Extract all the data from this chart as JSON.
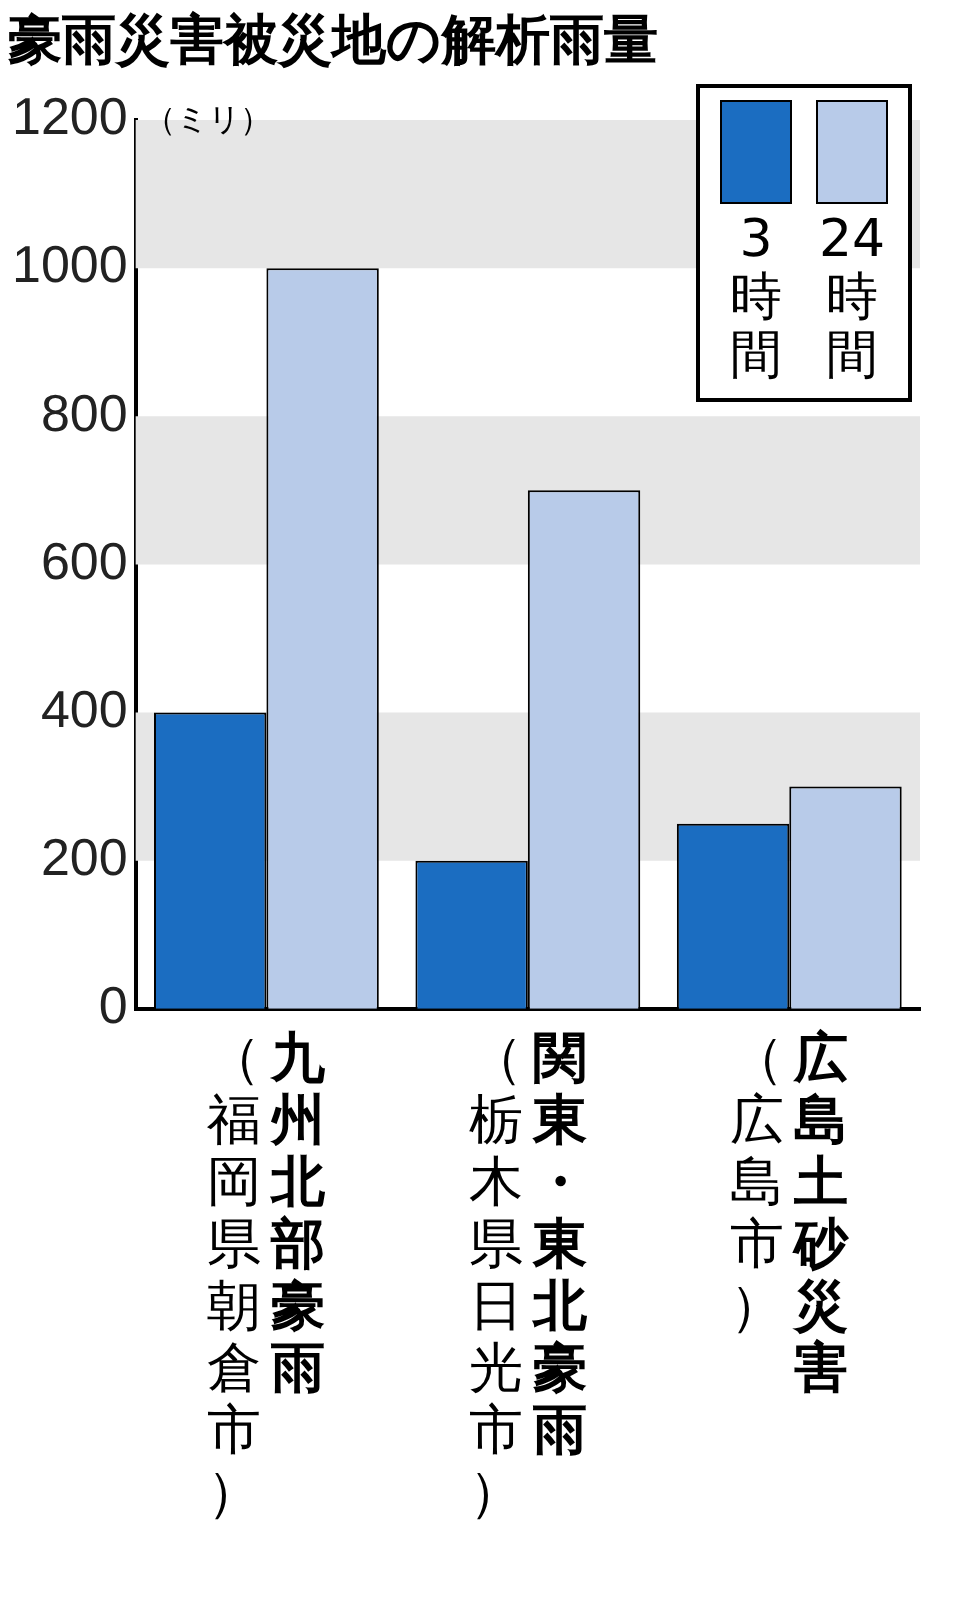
{
  "chart_data": {
    "type": "bar",
    "title": "豪雨災害被災地の解析雨量",
    "ylabel": "（ミリ）",
    "categories": [
      "九州北部豪雨（福岡県朝倉市）",
      "関東・東北豪雨（栃木県日光市）",
      "広島土砂災害（広島市）"
    ],
    "series": [
      {
        "name": "3時間",
        "color": "#1b6dc1",
        "values": [
          400,
          200,
          250
        ]
      },
      {
        "name": "24時間",
        "color": "#b8cbe9",
        "values": [
          1000,
          700,
          300
        ]
      }
    ],
    "ylim": [
      0,
      1200
    ],
    "yticks": [
      0,
      200,
      400,
      600,
      800,
      1000,
      1200
    ],
    "grid": false,
    "legend": "top right",
    "bands": [
      {
        "axis": "y",
        "from": 200,
        "to": 400,
        "color": "#e6e6e6"
      },
      {
        "axis": "y",
        "from": 600,
        "to": 800,
        "color": "#e6e6e6"
      },
      {
        "axis": "y",
        "from": 1000,
        "to": 1200,
        "color": "#e6e6e6"
      }
    ]
  }
}
